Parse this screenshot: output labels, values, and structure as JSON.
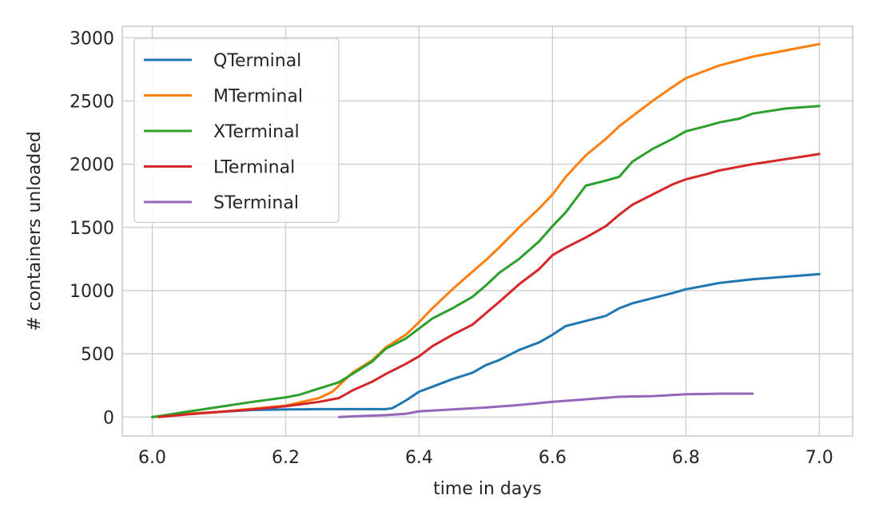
{
  "chart_data": {
    "type": "line",
    "title": "",
    "xlabel": "time in days",
    "ylabel": "# containers unloaded",
    "xlim": [
      5.955,
      7.05
    ],
    "ylim": [
      -150,
      3090
    ],
    "xticks": [
      6.0,
      6.2,
      6.4,
      6.6,
      6.8,
      7.0
    ],
    "xtick_labels": [
      "6.0",
      "6.2",
      "6.4",
      "6.6",
      "6.8",
      "7.0"
    ],
    "yticks": [
      0,
      500,
      1000,
      1500,
      2000,
      2500,
      3000
    ],
    "ytick_labels": [
      "0",
      "500",
      "1000",
      "1500",
      "2000",
      "2500",
      "3000"
    ],
    "grid": true,
    "legend_position": "top-left",
    "series": [
      {
        "name": "QTerminal",
        "color": "#1f77b4",
        "x": [
          6.0,
          6.02,
          6.05,
          6.1,
          6.15,
          6.2,
          6.25,
          6.3,
          6.35,
          6.36,
          6.38,
          6.4,
          6.42,
          6.45,
          6.48,
          6.5,
          6.52,
          6.55,
          6.58,
          6.6,
          6.62,
          6.65,
          6.68,
          6.7,
          6.72,
          6.75,
          6.78,
          6.8,
          6.83,
          6.85,
          6.9,
          6.95,
          7.0
        ],
        "values": [
          0,
          10,
          25,
          40,
          55,
          60,
          62,
          62,
          62,
          70,
          130,
          200,
          240,
          300,
          350,
          410,
          450,
          530,
          590,
          650,
          720,
          760,
          800,
          860,
          900,
          940,
          980,
          1010,
          1040,
          1060,
          1090,
          1110,
          1130
        ]
      },
      {
        "name": "MTerminal",
        "color": "#ff7f0e",
        "x": [
          6.0,
          6.02,
          6.05,
          6.1,
          6.15,
          6.2,
          6.25,
          6.27,
          6.3,
          6.33,
          6.35,
          6.38,
          6.4,
          6.42,
          6.45,
          6.48,
          6.5,
          6.52,
          6.55,
          6.58,
          6.6,
          6.62,
          6.65,
          6.68,
          6.7,
          6.72,
          6.75,
          6.78,
          6.8,
          6.83,
          6.85,
          6.9,
          6.95,
          7.0
        ],
        "values": [
          0,
          10,
          25,
          40,
          65,
          90,
          150,
          200,
          350,
          450,
          550,
          650,
          750,
          860,
          1010,
          1150,
          1240,
          1340,
          1500,
          1650,
          1760,
          1900,
          2070,
          2200,
          2300,
          2380,
          2500,
          2610,
          2680,
          2740,
          2780,
          2850,
          2900,
          2950
        ]
      },
      {
        "name": "XTerminal",
        "color": "#2ca02c",
        "x": [
          6.0,
          6.02,
          6.05,
          6.1,
          6.15,
          6.2,
          6.22,
          6.25,
          6.28,
          6.3,
          6.33,
          6.35,
          6.38,
          6.4,
          6.42,
          6.45,
          6.48,
          6.5,
          6.52,
          6.55,
          6.58,
          6.6,
          6.62,
          6.65,
          6.68,
          6.7,
          6.72,
          6.75,
          6.78,
          6.8,
          6.83,
          6.85,
          6.88,
          6.9,
          6.95,
          7.0
        ],
        "values": [
          0,
          15,
          40,
          80,
          120,
          155,
          175,
          225,
          275,
          340,
          440,
          540,
          620,
          700,
          780,
          860,
          950,
          1040,
          1140,
          1250,
          1390,
          1510,
          1620,
          1830,
          1870,
          1900,
          2020,
          2120,
          2200,
          2260,
          2300,
          2330,
          2360,
          2400,
          2440,
          2460
        ]
      },
      {
        "name": "LTerminal",
        "color": "#d62728",
        "x": [
          6.01,
          6.05,
          6.1,
          6.15,
          6.2,
          6.25,
          6.28,
          6.3,
          6.33,
          6.35,
          6.38,
          6.4,
          6.42,
          6.45,
          6.48,
          6.5,
          6.52,
          6.55,
          6.58,
          6.6,
          6.62,
          6.65,
          6.68,
          6.7,
          6.72,
          6.75,
          6.78,
          6.8,
          6.83,
          6.85,
          6.88,
          6.9,
          6.95,
          7.0
        ],
        "values": [
          0,
          20,
          40,
          60,
          85,
          120,
          150,
          210,
          280,
          340,
          420,
          480,
          560,
          650,
          730,
          820,
          910,
          1050,
          1170,
          1280,
          1340,
          1420,
          1510,
          1600,
          1680,
          1760,
          1840,
          1880,
          1920,
          1950,
          1980,
          2000,
          2040,
          2080
        ]
      },
      {
        "name": "STerminal",
        "color": "#9467bd",
        "x": [
          6.28,
          6.3,
          6.35,
          6.38,
          6.4,
          6.45,
          6.5,
          6.55,
          6.6,
          6.65,
          6.7,
          6.75,
          6.8,
          6.85,
          6.9
        ],
        "values": [
          0,
          5,
          15,
          25,
          45,
          60,
          75,
          95,
          120,
          140,
          160,
          165,
          180,
          185,
          185
        ]
      }
    ]
  }
}
